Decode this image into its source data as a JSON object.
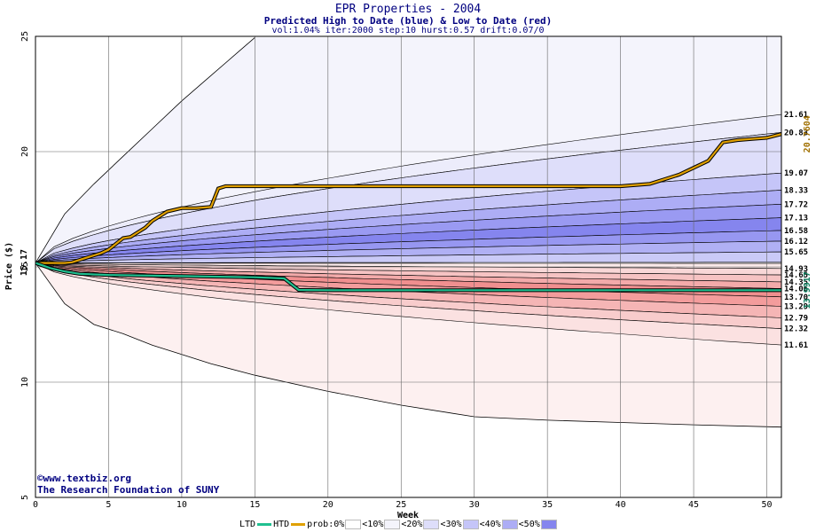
{
  "chart_data": {
    "type": "area",
    "title": "EPR Properties - 2004",
    "subtitle": "Predicted High to Date (blue) &  Low to Date (red)",
    "params": "vol:1.04% iter:2000 step:10 hurst:0.57 drift:0.07/0",
    "xlabel": "Week",
    "ylabel": "Price ($)",
    "xlim": [
      0,
      51
    ],
    "ylim": [
      5,
      25
    ],
    "x_ticks": [
      "0",
      "5",
      "10",
      "15",
      "20",
      "25",
      "30",
      "35",
      "40",
      "45",
      "50"
    ],
    "y_ticks": [
      "5",
      "10",
      "15",
      "20",
      "25"
    ],
    "start_price_label": "15.17",
    "start_price": 15.17,
    "outer_upper": {
      "x": [
        0,
        2,
        4,
        6,
        8,
        10,
        12,
        14,
        15
      ],
      "y": [
        15.17,
        17.3,
        18.6,
        19.8,
        21.0,
        22.2,
        23.3,
        24.4,
        24.95
      ]
    },
    "outer_lower": {
      "x": [
        0,
        2,
        4,
        6,
        8,
        10,
        12,
        15,
        20,
        25,
        30,
        35,
        40,
        45,
        51
      ],
      "y": [
        15.17,
        13.4,
        12.5,
        12.1,
        11.6,
        11.2,
        10.8,
        10.3,
        9.6,
        9.0,
        8.5,
        8.35,
        8.25,
        8.15,
        8.05
      ]
    },
    "blue_band_ends": [
      21.61,
      20.83,
      19.07,
      18.33,
      17.72,
      17.13,
      16.58,
      16.12,
      15.65
    ],
    "blue_band_labels": [
      "21.61",
      "20.83",
      "19.07",
      "18.33",
      "17.72",
      "17.13",
      "16.58",
      "16.12",
      "15.65"
    ],
    "red_band_ends": [
      14.93,
      14.65,
      14.35,
      14.06,
      13.7,
      13.29,
      12.79,
      12.32,
      11.61
    ],
    "red_band_labels": [
      "14.93",
      "14.65",
      "14.35",
      "14.06",
      "13.70",
      "13.29",
      "12.79",
      "12.32",
      "11.61"
    ],
    "band_colors_blue": [
      "#ececfb",
      "#dedefa",
      "#c5c5f8",
      "#adadf5",
      "#9a9af2",
      "#8585ee",
      "#9797f1",
      "#b0b0f4",
      "#cacaf7"
    ],
    "band_colors_red": [
      "#fbeaea",
      "#f8d7d7",
      "#f6c3c3",
      "#f3aaaa",
      "#f08f8f",
      "#f39c9c",
      "#f5b5b5",
      "#f8cccc",
      "#fbe1e1"
    ],
    "series": [
      {
        "name": "HTD",
        "color": "#e0a000",
        "x": [
          0,
          2,
          2.5,
          3,
          3.5,
          4,
          4.5,
          5,
          5.5,
          6,
          6.5,
          7,
          7.5,
          8,
          8.5,
          9,
          10,
          11,
          12,
          12.5,
          13,
          15,
          20,
          25,
          30,
          35,
          40,
          42,
          43,
          44,
          45,
          46,
          47,
          48,
          49,
          50,
          51
        ],
        "y": [
          15.17,
          15.17,
          15.2,
          15.3,
          15.4,
          15.5,
          15.6,
          15.75,
          16.0,
          16.25,
          16.3,
          16.5,
          16.7,
          17.0,
          17.2,
          17.4,
          17.55,
          17.55,
          17.6,
          18.4,
          18.5,
          18.5,
          18.5,
          18.5,
          18.5,
          18.5,
          18.5,
          18.6,
          18.8,
          19.0,
          19.3,
          19.6,
          20.4,
          20.5,
          20.55,
          20.6,
          20.76
        ],
        "end_label": "20.7604"
      },
      {
        "name": "LTD",
        "color": "#20c090",
        "x": [
          0,
          1,
          2,
          3,
          5,
          10,
          15,
          17,
          18,
          20,
          25,
          30,
          35,
          40,
          45,
          51
        ],
        "y": [
          15.17,
          14.95,
          14.8,
          14.7,
          14.65,
          14.6,
          14.55,
          14.5,
          14.0,
          13.99,
          13.99,
          13.99,
          13.99,
          13.99,
          13.99,
          13.99
        ],
        "end_label": "13.9917"
      }
    ],
    "legend": [
      "LTD",
      "HTD",
      "prob:0%",
      "<10%",
      "<20%",
      "<30%",
      "<40%",
      "<50%"
    ],
    "legend_colors": [
      "#ffffff",
      "#f4f4fc",
      "#dedefa",
      "#c5c5f8",
      "#adadf5",
      "#8585ee"
    ],
    "grid": true,
    "legend_position": "bottom"
  },
  "credits": {
    "line1": "©www.textbiz.org",
    "line2": "The Research Foundation of SUNY"
  }
}
